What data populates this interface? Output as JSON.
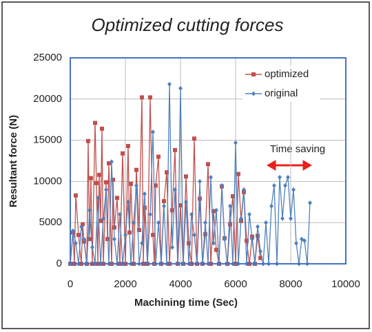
{
  "chart_data": {
    "type": "line",
    "title": "Optimized cutting forces",
    "x_label": "Machining time (Sec)",
    "y_label": "Resultant force (N)",
    "xlim": [
      0,
      10000
    ],
    "xticks": [
      0,
      2000,
      4000,
      6000,
      8000,
      10000
    ],
    "ylim": [
      0,
      25000
    ],
    "yticks": [
      0,
      5000,
      10000,
      15000,
      20000,
      25000
    ],
    "grid": true,
    "legend": "upper right",
    "annotation": "Time saving",
    "series": [
      {
        "name": "optimized",
        "color": "#c0504d",
        "marker": "square",
        "x": [
          0,
          100,
          150,
          200,
          300,
          400,
          450,
          500,
          600,
          650,
          700,
          750,
          800,
          900,
          950,
          1000,
          1050,
          1100,
          1150,
          1200,
          1300,
          1350,
          1400,
          1500,
          1550,
          1600,
          1700,
          1800,
          1900,
          2000,
          2100,
          2150,
          2200,
          2300,
          2400,
          2500,
          2600,
          2650,
          2700,
          2800,
          2900,
          3000,
          3050,
          3100,
          3200,
          3300,
          3400,
          3500,
          3600,
          3700,
          3800,
          3900,
          4000,
          4100,
          4200,
          4300,
          4400,
          4500,
          4600,
          4700,
          4800,
          4900,
          5000,
          5100,
          5200,
          5300,
          5400,
          5500,
          5600,
          5700,
          5800,
          5900,
          6000,
          6100,
          6200,
          6300,
          6400,
          6500,
          6600,
          6700,
          6800,
          6900
        ],
        "values": [
          0,
          3800,
          0,
          8300,
          3500,
          0,
          4800,
          2700,
          0,
          14900,
          3000,
          10400,
          0,
          17100,
          9800,
          0,
          10800,
          5200,
          16400,
          0,
          9900,
          3000,
          12200,
          0,
          10200,
          4400,
          8000,
          0,
          13400,
          0,
          14300,
          3800,
          9700,
          0,
          11400,
          4100,
          20200,
          0,
          6800,
          0,
          20200,
          3500,
          0,
          9500,
          13000,
          0,
          7600,
          11100,
          0,
          6500,
          13800,
          0,
          7100,
          0,
          10600,
          2500,
          0,
          15200,
          0,
          7900,
          0,
          3600,
          12100,
          0,
          6400,
          1700,
          0,
          9400,
          3100,
          0,
          4800,
          8200,
          0,
          10900,
          5200,
          8700,
          2800,
          0,
          3300,
          0,
          3400,
          700
        ]
      },
      {
        "name": "original",
        "color": "#4f81bd",
        "marker": "diamond",
        "x": [
          0,
          100,
          200,
          300,
          400,
          500,
          600,
          700,
          800,
          900,
          1000,
          1100,
          1200,
          1300,
          1400,
          1500,
          1600,
          1700,
          1800,
          1900,
          2000,
          2100,
          2200,
          2300,
          2400,
          2500,
          2600,
          2700,
          2800,
          2900,
          3000,
          3100,
          3200,
          3300,
          3400,
          3500,
          3600,
          3700,
          3800,
          3900,
          4000,
          4100,
          4200,
          4300,
          4400,
          4500,
          4600,
          4700,
          4800,
          4900,
          5000,
          5100,
          5200,
          5300,
          5400,
          5500,
          5600,
          5700,
          5800,
          5900,
          6000,
          6100,
          6200,
          6300,
          6400,
          6500,
          6600,
          6700,
          6800,
          6900,
          7000,
          7100,
          7200,
          7300,
          7400,
          7500,
          7600,
          7700,
          7800,
          7900,
          8000,
          8100,
          8200,
          8300,
          8400,
          8500,
          8600,
          8700
        ],
        "values": [
          0,
          4000,
          2500,
          0,
          4500,
          3000,
          0,
          6500,
          2000,
          0,
          8000,
          0,
          5500,
          9000,
          0,
          12400,
          3000,
          0,
          6000,
          0,
          3500,
          7500,
          0,
          5000,
          9500,
          0,
          2500,
          8500,
          0,
          6000,
          16000,
          0,
          5000,
          0,
          7000,
          0,
          21800,
          2000,
          9000,
          0,
          21300,
          0,
          7500,
          0,
          6000,
          3500,
          0,
          10000,
          0,
          5000,
          0,
          10500,
          2500,
          6500,
          0,
          9500,
          3000,
          0,
          7000,
          0,
          14700,
          0,
          5500,
          9000,
          0,
          6000,
          3000,
          0,
          4500,
          1500,
          0,
          5000,
          0,
          7000,
          9500,
          0,
          10500,
          5500,
          9500,
          10500,
          5500,
          9000,
          2500,
          0,
          3000,
          2800,
          0,
          7400
        ]
      }
    ]
  }
}
